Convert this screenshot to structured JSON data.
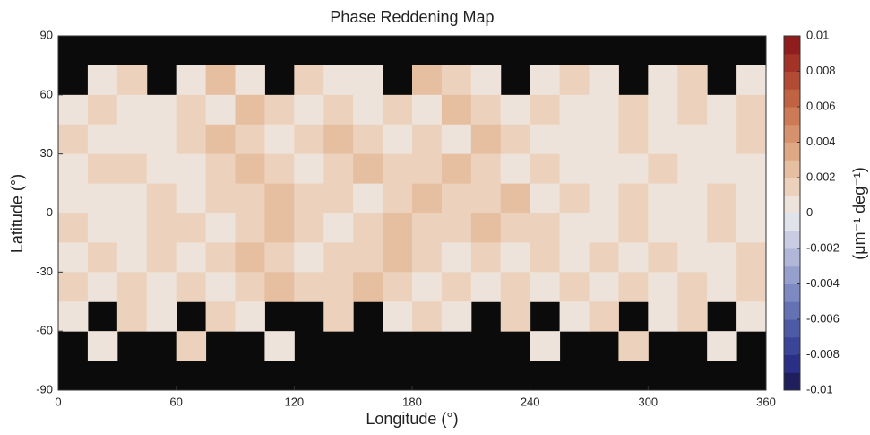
{
  "chart_data": {
    "type": "heatmap",
    "title": "Phase Reddening Map",
    "x_label": "Longitude (°)",
    "y_label": "Latitude (°)",
    "colorbar_label": "(μm⁻¹ deg⁻¹)",
    "xlim": [
      0,
      360
    ],
    "xticks": [
      0,
      60,
      120,
      180,
      240,
      300,
      360
    ],
    "ylim": [
      -90,
      90
    ],
    "yticks": [
      90,
      60,
      30,
      0,
      -30,
      -60,
      -90
    ],
    "clim": [
      -0.01,
      0.01
    ],
    "cticks": [
      0.01,
      0.008,
      0.006,
      0.004,
      0.002,
      0,
      -0.002,
      -0.004,
      -0.006,
      -0.008,
      -0.01
    ],
    "nan_color": "#0b0b0b",
    "colors": [
      "#1e1f5c",
      "#2b2f86",
      "#3a4597",
      "#4d5ba6",
      "#6472b3",
      "#7d89c0",
      "#97a0cc",
      "#b0b7d8",
      "#c9cde3",
      "#e0e2ec",
      "#eee3da",
      "#ecd2bd",
      "#e6bea0",
      "#dfa885",
      "#d6926c",
      "#cc7b56",
      "#c06343",
      "#b24b33",
      "#a23326",
      "#8e1d1c"
    ],
    "z": [
      [
        null,
        null,
        null,
        null,
        null,
        null,
        null,
        null,
        null,
        null,
        null,
        null,
        null,
        null,
        null,
        null,
        null,
        null,
        null,
        null,
        null,
        null,
        null,
        null
      ],
      [
        null,
        0.001,
        0.0015,
        null,
        0.001,
        0.002,
        0.001,
        null,
        0.0015,
        0.001,
        0.001,
        null,
        0.002,
        0.0015,
        0.001,
        null,
        0.001,
        0.0015,
        0.001,
        null,
        0.001,
        0.0015,
        null,
        0.001
      ],
      [
        0.001,
        0.0015,
        0.001,
        0.0005,
        0.0015,
        0.001,
        0.002,
        0.0015,
        0.001,
        0.0015,
        0.001,
        0.0015,
        0.001,
        0.002,
        0.0015,
        0.001,
        0.0015,
        0.001,
        0.0005,
        0.0015,
        0.001,
        0.0015,
        0.001,
        0.0015
      ],
      [
        0.0015,
        0.001,
        0.0005,
        0.001,
        0.0015,
        0.002,
        0.0015,
        0.001,
        0.0015,
        0.002,
        0.0015,
        0.001,
        0.0015,
        0.001,
        0.002,
        0.0015,
        0.001,
        0.0005,
        0.001,
        0.0015,
        0.001,
        0.0005,
        0.001,
        0.0015
      ],
      [
        0.001,
        0.0015,
        0.0015,
        0.001,
        0.001,
        0.0015,
        0.002,
        0.0015,
        0.001,
        0.0015,
        0.002,
        0.0015,
        0.0015,
        0.002,
        0.0015,
        0.001,
        0.0015,
        0.001,
        0.0005,
        0.001,
        0.0015,
        0.0005,
        0.001,
        0.001
      ],
      [
        0.001,
        0.0005,
        0.001,
        0.0015,
        0.001,
        0.0015,
        0.0015,
        0.002,
        0.0015,
        0.0015,
        0.001,
        0.0015,
        0.002,
        0.0015,
        0.0015,
        0.002,
        0.001,
        0.0015,
        0.0005,
        0.0015,
        0.001,
        0.0005,
        0.0015,
        0.001
      ],
      [
        0.0015,
        0.0005,
        0.001,
        0.0015,
        0.0015,
        0.001,
        0.0015,
        0.002,
        0.0015,
        0.001,
        0.0015,
        0.002,
        0.0015,
        0.0015,
        0.002,
        0.0015,
        0.0015,
        0.001,
        0.0005,
        0.0015,
        0.001,
        0.0005,
        0.0015,
        0.001
      ],
      [
        0.001,
        0.0015,
        0.001,
        0.0015,
        0.001,
        0.0015,
        0.002,
        0.0015,
        0.001,
        0.0015,
        0.0015,
        0.002,
        0.0015,
        0.001,
        0.0015,
        0.001,
        0.0015,
        0.001,
        0.0015,
        0.001,
        0.0015,
        0.001,
        0.001,
        0.0015
      ],
      [
        0.0015,
        0.001,
        0.0015,
        0.001,
        0.0015,
        0.001,
        0.0015,
        0.002,
        0.0015,
        0.0015,
        0.002,
        0.0015,
        0.001,
        0.0015,
        0.001,
        0.0015,
        0.001,
        0.0015,
        0.001,
        0.0015,
        0.001,
        0.0015,
        0.001,
        0.0015
      ],
      [
        0.001,
        null,
        0.0015,
        0.001,
        null,
        0.0015,
        0.001,
        null,
        null,
        0.0015,
        null,
        0.001,
        0.0015,
        0.001,
        null,
        0.0015,
        null,
        0.001,
        0.0015,
        null,
        0.001,
        0.0015,
        null,
        0.001
      ],
      [
        null,
        0.001,
        null,
        null,
        0.0015,
        null,
        null,
        0.001,
        null,
        null,
        null,
        null,
        null,
        null,
        null,
        null,
        0.001,
        null,
        null,
        0.0015,
        null,
        null,
        0.001,
        null
      ],
      [
        null,
        null,
        null,
        null,
        null,
        null,
        null,
        null,
        null,
        null,
        null,
        null,
        null,
        null,
        null,
        null,
        null,
        null,
        null,
        null,
        null,
        null,
        null,
        null
      ]
    ]
  }
}
